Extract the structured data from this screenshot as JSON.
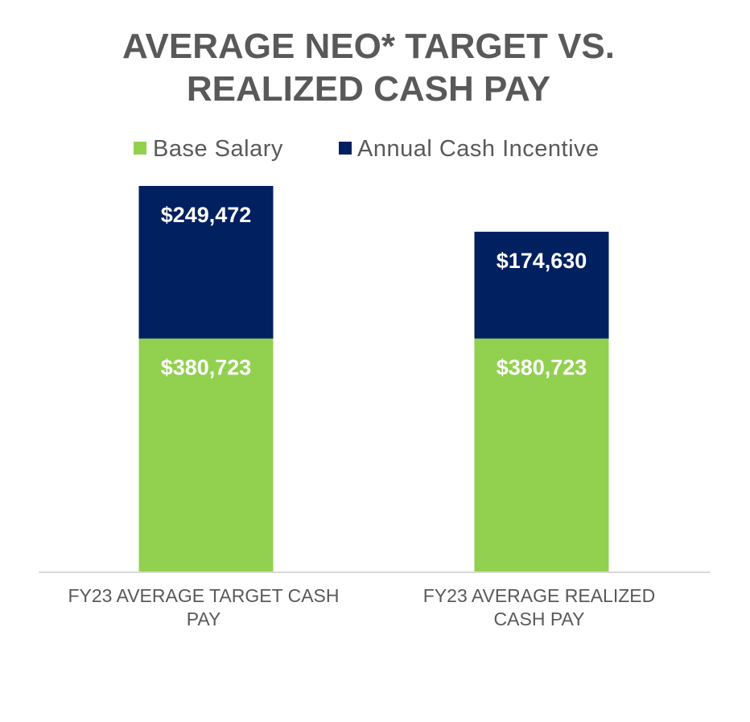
{
  "chart_data": {
    "type": "bar",
    "stacked": true,
    "title_lines": [
      "AVERAGE NEO* TARGET VS.",
      "REALIZED CASH PAY"
    ],
    "categories": [
      [
        "FY23 AVERAGE TARGET CASH",
        "PAY"
      ],
      [
        "FY23 AVERAGE REALIZED",
        "CASH PAY"
      ]
    ],
    "series": [
      {
        "name": "Base Salary",
        "color": "#92d050",
        "values": [
          380723,
          380723
        ],
        "labels": [
          "$380,723",
          "$380,723"
        ]
      },
      {
        "name": "Annual Cash Incentive",
        "color": "#002060",
        "values": [
          249472,
          174630
        ],
        "labels": [
          "$249,472",
          "$174,630"
        ]
      }
    ],
    "legend_position": "top",
    "grid": false,
    "ylim": [
      0,
      630195
    ]
  }
}
